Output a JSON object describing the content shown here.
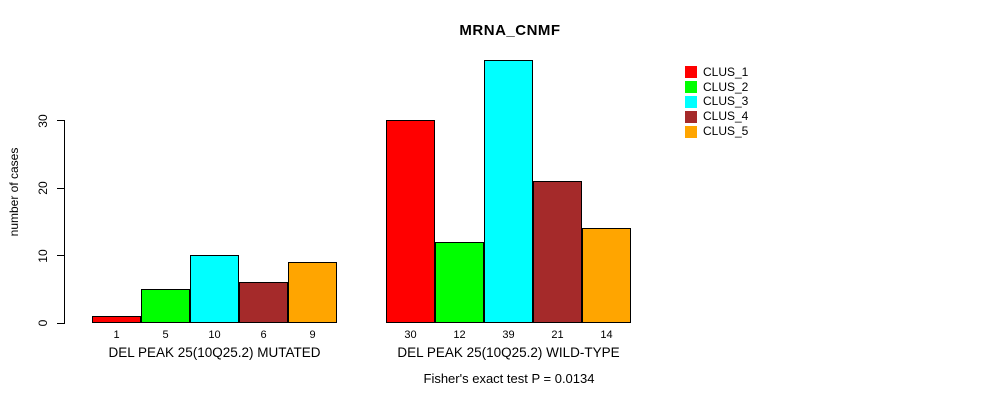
{
  "chart_data": {
    "type": "bar",
    "title": "MRNA_CNMF",
    "ylabel": "number of cases",
    "ylim": [
      0,
      39
    ],
    "yticks": [
      0,
      10,
      20,
      30
    ],
    "grid": false,
    "legend_position": "right",
    "categories": [
      "DEL PEAK 25(10Q25.2) MUTATED",
      "DEL PEAK 25(10Q25.2) WILD-TYPE"
    ],
    "series": [
      {
        "name": "CLUS_1",
        "color": "#FF0000",
        "values": [
          1,
          30
        ]
      },
      {
        "name": "CLUS_2",
        "color": "#00FF00",
        "values": [
          5,
          12
        ]
      },
      {
        "name": "CLUS_3",
        "color": "#00FFFF",
        "values": [
          10,
          39
        ]
      },
      {
        "name": "CLUS_4",
        "color": "#A52A2A",
        "values": [
          6,
          21
        ]
      },
      {
        "name": "CLUS_5",
        "color": "#FFA500",
        "values": [
          9,
          14
        ]
      }
    ],
    "bar_value_labels": [
      [
        1,
        5,
        10,
        6,
        9
      ],
      [
        30,
        12,
        39,
        21,
        14
      ]
    ],
    "annotation": "Fisher's exact test P = 0.0134"
  }
}
